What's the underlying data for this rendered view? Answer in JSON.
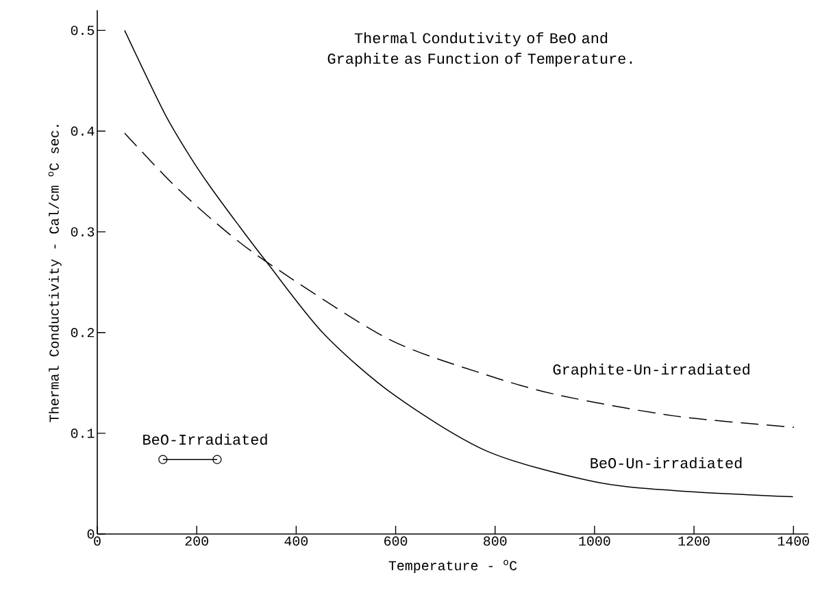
{
  "chart_data": {
    "type": "line",
    "title": "Thermal Condutivity of BeO and Graphite as Function of Temperature.",
    "xlabel": "Temperature - $^{o}$C",
    "ylabel": "Thermal Conductivity - Cal/cm $^{o}$C sec.",
    "xlim": [
      0,
      1430
    ],
    "ylim": [
      0,
      0.52
    ],
    "xticks": [
      0,
      200,
      400,
      600,
      800,
      1000,
      1200,
      1400
    ],
    "yticks": [
      0,
      0.1,
      0.2,
      0.3,
      0.4,
      0.5
    ],
    "grid": false,
    "legend": false,
    "series": [
      {
        "name": "BeO-Un-irradiated",
        "color": "#000000",
        "line_style": "solid",
        "marker": "none",
        "x": [
          55,
          135,
          190,
          227,
          282,
          339,
          455,
          597,
          785,
          999,
          1164,
          1399
        ],
        "values": [
          0.5,
          0.418,
          0.372,
          0.345,
          0.308,
          0.271,
          0.199,
          0.138,
          0.082,
          0.052,
          0.043,
          0.037
        ]
      },
      {
        "name": "Graphite-Un-irradiated",
        "color": "#000000",
        "line_style": "dashed",
        "marker": "none",
        "x": [
          55,
          149,
          236,
          338,
          580,
          770,
          927,
          1164,
          1401
        ],
        "values": [
          0.398,
          0.349,
          0.31,
          0.271,
          0.195,
          0.16,
          0.138,
          0.117,
          0.106
        ]
      },
      {
        "name": "BeO-Irradiated",
        "color": "#000000",
        "line_style": "solid",
        "marker": "circle",
        "x": [
          132,
          241
        ],
        "values": [
          0.074,
          0.074
        ]
      }
    ]
  }
}
